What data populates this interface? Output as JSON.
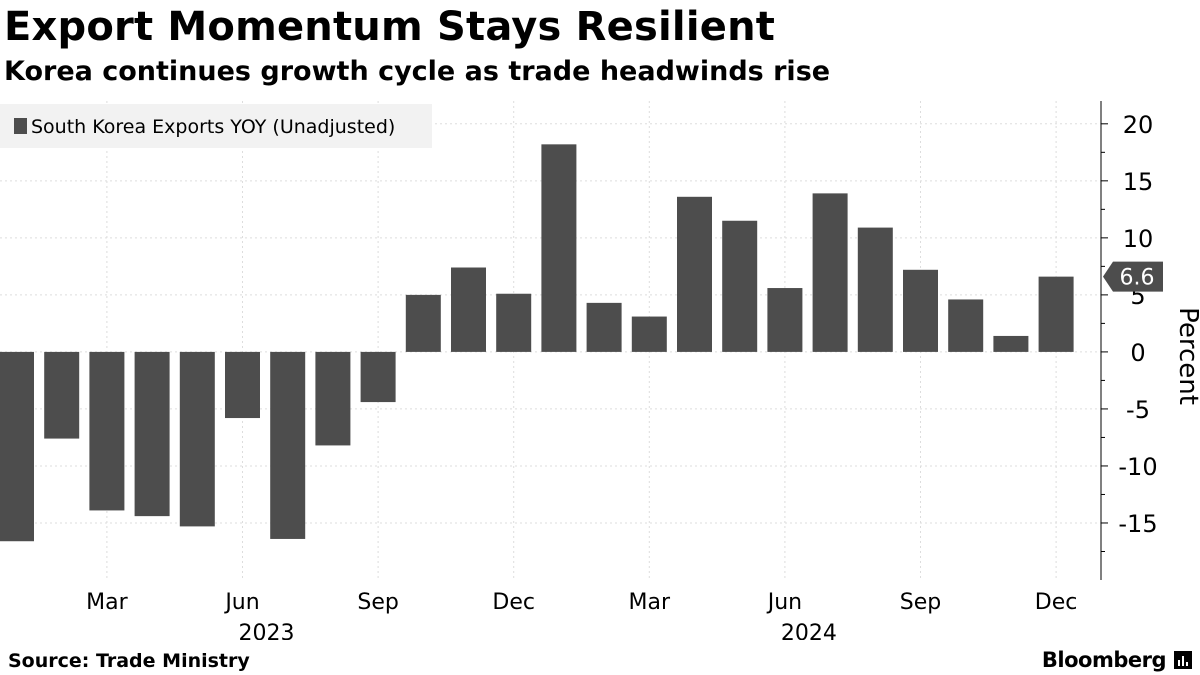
{
  "title": "Export Momentum Stays Resilient",
  "subtitle": "Korea continues growth cycle as trade headwinds rise",
  "source": "Source: Trade Ministry",
  "brand": "Bloomberg",
  "colors": {
    "bar": "#4d4d4d",
    "grid": "#dddddd",
    "axis": "#000000",
    "legend_bg": "#f2f2f2",
    "callout": "#4d4d4d"
  },
  "chart_data": {
    "type": "bar",
    "series": [
      {
        "name": "South Korea Exports YOY (Unadjusted)",
        "categories": [
          "2023-01",
          "2023-02",
          "2023-03",
          "2023-04",
          "2023-05",
          "2023-06",
          "2023-07",
          "2023-08",
          "2023-09",
          "2023-10",
          "2023-11",
          "2023-12",
          "2024-01",
          "2024-02",
          "2024-03",
          "2024-04",
          "2024-05",
          "2024-06",
          "2024-07",
          "2024-08",
          "2024-09",
          "2024-10",
          "2024-11",
          "2024-12"
        ],
        "values": [
          -16.6,
          -7.6,
          -13.9,
          -14.4,
          -15.3,
          -5.8,
          -16.4,
          -8.2,
          -4.4,
          5.0,
          7.4,
          5.1,
          18.2,
          4.3,
          3.1,
          13.6,
          11.5,
          5.6,
          13.9,
          10.9,
          7.2,
          4.6,
          1.4,
          6.6
        ]
      }
    ],
    "legend": "top-left",
    "ylabel": "Percent",
    "ylim": [
      -20,
      22
    ],
    "yticks": [
      20,
      15,
      10,
      5,
      0,
      -5,
      -10,
      -15
    ],
    "y_axis_side": "right",
    "x_tick_labels": [
      {
        "label": "Mar",
        "category": "2023-03"
      },
      {
        "label": "Jun",
        "category": "2023-06"
      },
      {
        "label": "Sep",
        "category": "2023-09"
      },
      {
        "label": "Dec",
        "category": "2023-12"
      },
      {
        "label": "Mar",
        "category": "2024-03"
      },
      {
        "label": "Jun",
        "category": "2024-06"
      },
      {
        "label": "Sep",
        "category": "2024-09"
      },
      {
        "label": "Dec",
        "category": "2024-12"
      }
    ],
    "year_labels": [
      {
        "label": "2023",
        "category": "2023-06"
      },
      {
        "label": "2024",
        "category": "2024-06"
      }
    ],
    "grid": true,
    "callout": {
      "text": "6.6",
      "value": 6.6
    }
  }
}
